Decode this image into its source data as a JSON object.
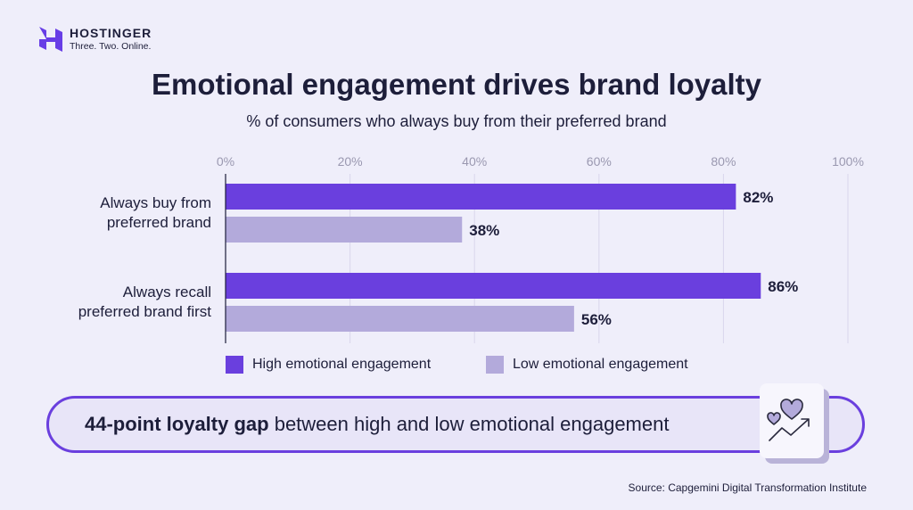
{
  "brand": {
    "name": "HOSTINGER",
    "tagline": "Three. Two. Online."
  },
  "colors": {
    "high": "#6a3fde",
    "low": "#b3aadb",
    "background": "#efeefa"
  },
  "chart_data": {
    "type": "bar",
    "orientation": "horizontal",
    "title": "Emotional engagement drives brand loyalty",
    "subtitle": "% of consumers who always buy from their preferred brand",
    "categories": [
      "Always buy from preferred brand",
      "Always recall preferred brand first"
    ],
    "category_lines": [
      [
        "Always buy from",
        "preferred brand"
      ],
      [
        "Always recall",
        "preferred brand first"
      ]
    ],
    "series": [
      {
        "name": "High emotional engagement",
        "values": [
          82,
          86
        ]
      },
      {
        "name": "Low emotional engagement",
        "values": [
          38,
          56
        ]
      }
    ],
    "data_labels": [
      [
        "82%",
        "86%"
      ],
      [
        "38%",
        "56%"
      ]
    ],
    "xlim": [
      0,
      100
    ],
    "ticks": [
      "0%",
      "20%",
      "40%",
      "60%",
      "80%",
      "100%"
    ],
    "grid": true,
    "legend": "bottom"
  },
  "callout": {
    "bold": "44-point loyalty gap",
    "rest": " between high and low emotional engagement",
    "icon": "hearts-trend-up-icon"
  },
  "source": "Source: Capgemini Digital Transformation Institute"
}
